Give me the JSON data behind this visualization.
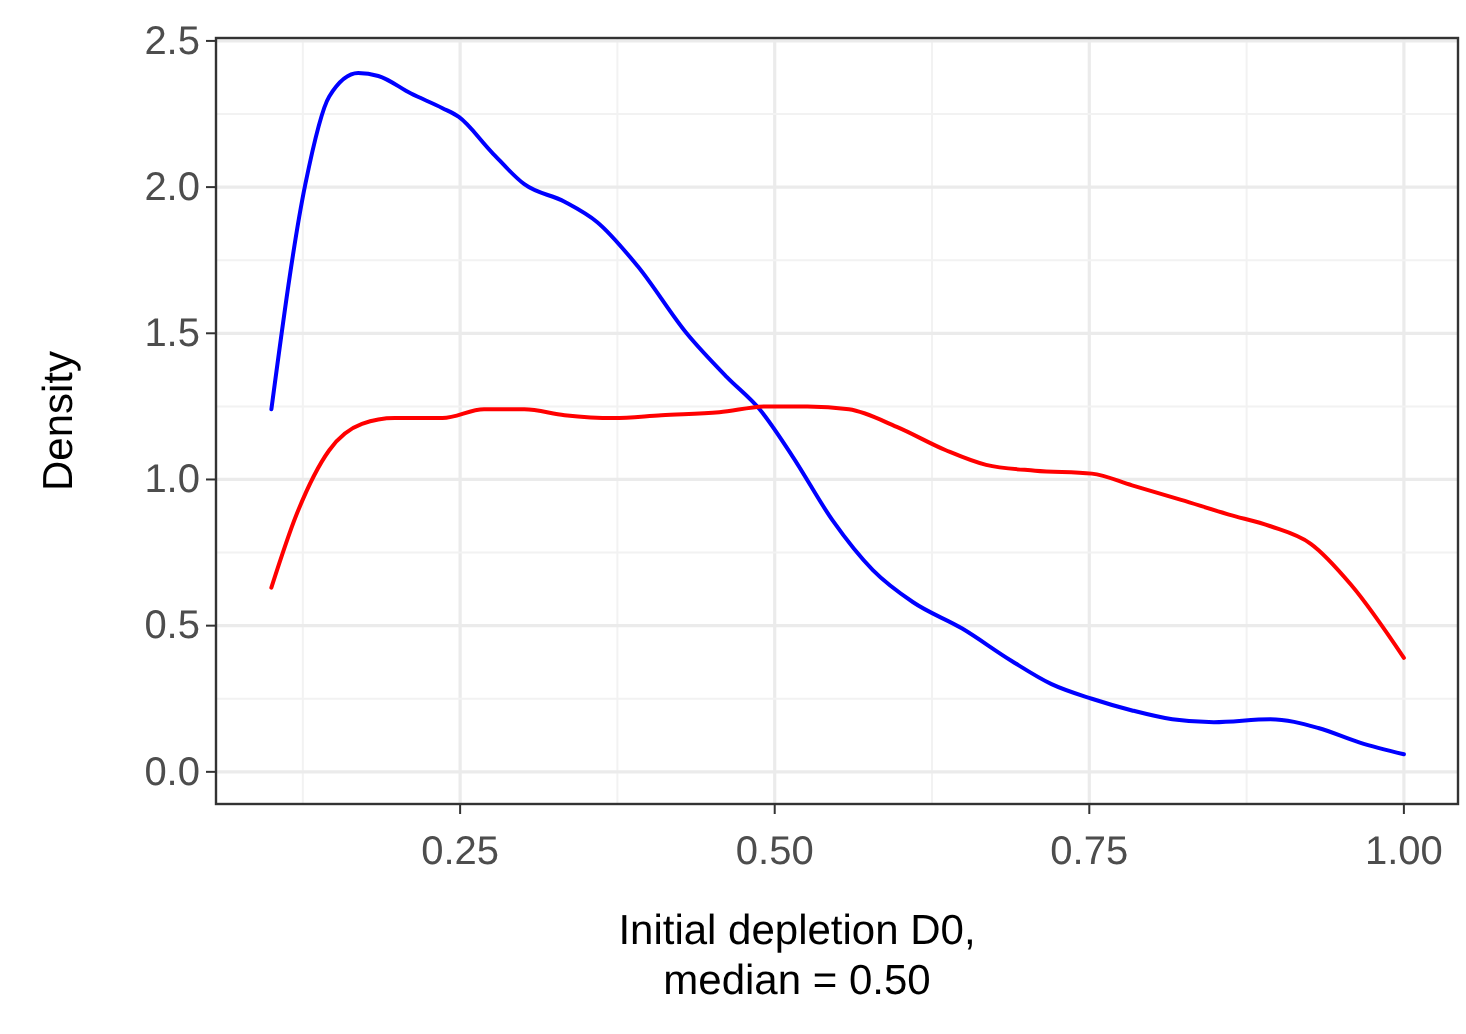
{
  "chart_data": {
    "type": "line",
    "xlabel": "Initial depletion D0,\nmedian = 0.50",
    "ylabel": "Density",
    "xlim": [
      0.056,
      1.043
    ],
    "ylim": [
      -0.11,
      2.51
    ],
    "xticks": [
      0.25,
      {
        "value": 0.5,
        "label": "0.50"
      },
      0.75,
      {
        "value": 1,
        "label": "1.00"
      }
    ],
    "yticks": [
      {
        "value": 0,
        "label": "0.0"
      },
      0.5,
      {
        "value": 1,
        "label": "1.0"
      },
      1.5,
      {
        "value": 2,
        "label": "2.0"
      },
      2.5
    ],
    "grid": true,
    "line_style": "solid",
    "marker": "none",
    "series": [
      {
        "color": "#0000ff",
        "x": [
          0.1,
          0.127,
          0.146,
          0.169,
          0.185,
          0.211,
          0.236,
          0.249,
          0.275,
          0.301,
          0.333,
          0.359,
          0.391,
          0.43,
          0.462,
          0.488,
          0.514,
          0.546,
          0.578,
          0.61,
          0.649,
          0.688,
          0.72,
          0.752,
          0.784,
          0.816,
          0.849,
          0.894,
          0.932,
          0.965,
          1.0
        ],
        "values": [
          1.24,
          2.01,
          2.31,
          2.39,
          2.38,
          2.32,
          2.27,
          2.24,
          2.12,
          2.01,
          1.95,
          1.88,
          1.73,
          1.5,
          1.35,
          1.24,
          1.08,
          0.86,
          0.69,
          0.58,
          0.49,
          0.38,
          0.3,
          0.25,
          0.21,
          0.18,
          0.17,
          0.18,
          0.15,
          0.1,
          0.06
        ]
      },
      {
        "color": "#ff0000",
        "x": [
          0.1,
          0.12,
          0.146,
          0.172,
          0.198,
          0.236,
          0.269,
          0.301,
          0.333,
          0.372,
          0.41,
          0.456,
          0.494,
          0.526,
          0.559,
          0.597,
          0.636,
          0.668,
          0.707,
          0.752,
          0.784,
          0.823,
          0.861,
          0.894,
          0.926,
          0.958,
          1.0
        ],
        "values": [
          0.63,
          0.88,
          1.1,
          1.19,
          1.21,
          1.21,
          1.24,
          1.24,
          1.22,
          1.21,
          1.22,
          1.23,
          1.25,
          1.25,
          1.24,
          1.18,
          1.1,
          1.05,
          1.03,
          1.02,
          0.98,
          0.93,
          0.88,
          0.84,
          0.78,
          0.64,
          0.39
        ]
      }
    ]
  }
}
